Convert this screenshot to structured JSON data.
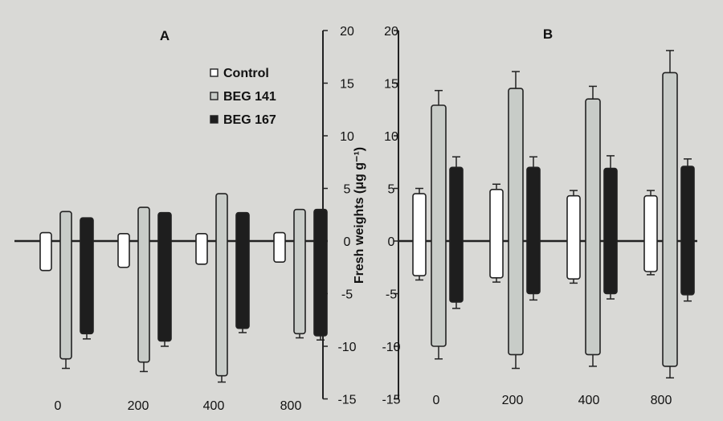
{
  "chart_data": [
    {
      "panel_label": "A",
      "type": "bar",
      "categories": [
        "0",
        "200",
        "400",
        "800"
      ],
      "legend": [
        "Control",
        "BEG 141",
        "BEG 167"
      ],
      "series": [
        {
          "name": "Control",
          "color": "#ffffff",
          "top": [
            0.8,
            0.7,
            0.7,
            0.8
          ],
          "bottom": [
            -2.8,
            -2.5,
            -2.2,
            -2.0
          ],
          "err_top": [
            0,
            0,
            0,
            0
          ],
          "err_bottom": [
            0,
            0,
            0,
            0
          ]
        },
        {
          "name": "BEG 141",
          "color": "#c8ccc8",
          "top": [
            2.8,
            3.2,
            4.5,
            3.0
          ],
          "bottom": [
            -11.2,
            -11.5,
            -12.8,
            -8.8
          ],
          "err_top": [
            0,
            0,
            0,
            0
          ],
          "err_bottom": [
            0.9,
            0.9,
            0.6,
            0.4
          ]
        },
        {
          "name": "BEG 167",
          "color": "#1e1e1e",
          "top": [
            2.2,
            2.7,
            2.7,
            3.0
          ],
          "bottom": [
            -8.8,
            -9.5,
            -8.3,
            -9.0
          ],
          "err_top": [
            0,
            0,
            0,
            0
          ],
          "err_bottom": [
            0.5,
            0.5,
            0.4,
            0.4
          ]
        }
      ],
      "ylim": [
        -15,
        20
      ],
      "yticks": [
        20,
        15,
        10,
        5,
        0,
        -5,
        -10,
        -15
      ]
    },
    {
      "panel_label": "B",
      "type": "bar",
      "categories": [
        "0",
        "200",
        "400",
        "800"
      ],
      "series": [
        {
          "name": "Control",
          "color": "#ffffff",
          "top": [
            4.5,
            4.9,
            4.3,
            4.3
          ],
          "bottom": [
            -3.3,
            -3.5,
            -3.6,
            -2.9
          ],
          "err_top": [
            0.5,
            0.5,
            0.5,
            0.5
          ],
          "err_bottom": [
            0.4,
            0.4,
            0.4,
            0.3
          ]
        },
        {
          "name": "BEG 141",
          "color": "#c8ccc8",
          "top": [
            12.9,
            14.5,
            13.5,
            16.0
          ],
          "bottom": [
            -10.0,
            -10.8,
            -10.8,
            -11.9
          ],
          "err_top": [
            1.4,
            1.6,
            1.2,
            2.1
          ],
          "err_bottom": [
            1.2,
            1.3,
            1.1,
            1.1
          ]
        },
        {
          "name": "BEG 167",
          "color": "#1e1e1e",
          "top": [
            7.0,
            7.0,
            6.9,
            7.1
          ],
          "bottom": [
            -5.8,
            -5.0,
            -5.0,
            -5.1
          ],
          "err_top": [
            1.0,
            1.0,
            1.2,
            0.7
          ],
          "err_bottom": [
            0.6,
            0.6,
            0.5,
            0.6
          ]
        }
      ],
      "ylim": [
        -15,
        20
      ],
      "yticks": [
        20,
        15,
        10,
        5,
        0,
        -5,
        -10,
        -15
      ]
    }
  ],
  "shared_axis": {
    "label": "Fresh weights (μg g⁻¹)"
  }
}
